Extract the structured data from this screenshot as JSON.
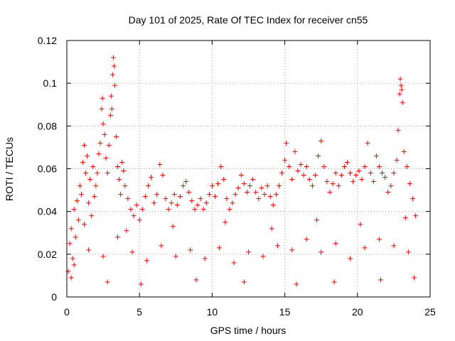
{
  "chart_data": {
    "type": "scatter",
    "title": "Day 101 of 2025, Rate Of TEC Index for receiver cn55",
    "xlabel": "GPS time / hours",
    "ylabel": "ROTI / TECUs",
    "xlim": [
      0,
      25
    ],
    "ylim": [
      0,
      0.12
    ],
    "xticks": [
      0,
      5,
      10,
      15,
      20,
      25
    ],
    "xtick_labels": [
      "0",
      "5",
      "10",
      "15",
      "20",
      "25"
    ],
    "yticks": [
      0,
      0.02,
      0.04,
      0.06,
      0.08,
      0.1,
      0.12
    ],
    "ytick_labels": [
      "0",
      "0.02",
      "0.04",
      "0.06",
      "0.08",
      "0.1",
      "0.12"
    ],
    "grid": true,
    "marker": "plus",
    "color": "#ff0000",
    "series": [
      {
        "points": [
          [
            0.1,
            0.012
          ],
          [
            0.2,
            0.025
          ],
          [
            0.3,
            0.032
          ],
          [
            0.4,
            0.018
          ],
          [
            0.5,
            0.041
          ],
          [
            0.6,
            0.028
          ],
          [
            0.7,
            0.045
          ],
          [
            0.8,
            0.036
          ],
          [
            0.9,
            0.052
          ],
          [
            1.0,
            0.048
          ],
          [
            1.1,
            0.063
          ],
          [
            1.2,
            0.071
          ],
          [
            1.3,
            0.058
          ],
          [
            1.4,
            0.066
          ],
          [
            1.5,
            0.044
          ],
          [
            1.6,
            0.055
          ],
          [
            1.7,
            0.038
          ],
          [
            1.8,
            0.061
          ],
          [
            1.9,
            0.047
          ],
          [
            2.0,
            0.052
          ],
          [
            2.1,
            0.058
          ],
          [
            2.2,
            0.067
          ],
          [
            2.3,
            0.072
          ],
          [
            2.4,
            0.088
          ],
          [
            2.45,
            0.093
          ],
          [
            2.5,
            0.081
          ],
          [
            2.6,
            0.076
          ],
          [
            2.7,
            0.065
          ],
          [
            2.8,
            0.058
          ],
          [
            2.9,
            0.071
          ],
          [
            3.0,
            0.085
          ],
          [
            3.05,
            0.094
          ],
          [
            3.1,
            0.088
          ],
          [
            3.15,
            0.104
          ],
          [
            3.2,
            0.112
          ],
          [
            3.25,
            0.108
          ],
          [
            3.3,
            0.099
          ],
          [
            3.4,
            0.075
          ],
          [
            3.5,
            0.061
          ],
          [
            3.6,
            0.055
          ],
          [
            3.7,
            0.048
          ],
          [
            3.8,
            0.063
          ],
          [
            3.9,
            0.059
          ],
          [
            4.0,
            0.052
          ],
          [
            4.2,
            0.046
          ],
          [
            4.4,
            0.041
          ],
          [
            4.6,
            0.038
          ],
          [
            4.8,
            0.043
          ],
          [
            5.0,
            0.036
          ],
          [
            5.2,
            0.041
          ],
          [
            5.4,
            0.047
          ],
          [
            5.6,
            0.052
          ],
          [
            5.8,
            0.056
          ],
          [
            6.0,
            0.044
          ],
          [
            6.2,
            0.048
          ],
          [
            6.4,
            0.062
          ],
          [
            6.6,
            0.057
          ],
          [
            6.8,
            0.046
          ],
          [
            7.0,
            0.041
          ],
          [
            7.2,
            0.044
          ],
          [
            7.4,
            0.048
          ],
          [
            7.6,
            0.043
          ],
          [
            7.8,
            0.047
          ],
          [
            8.0,
            0.052
          ],
          [
            8.2,
            0.054
          ],
          [
            8.4,
            0.049
          ],
          [
            8.6,
            0.045
          ],
          [
            8.8,
            0.041
          ],
          [
            9.0,
            0.043
          ],
          [
            9.2,
            0.046
          ],
          [
            9.4,
            0.041
          ],
          [
            9.6,
            0.044
          ],
          [
            9.8,
            0.048
          ],
          [
            10.0,
            0.052
          ],
          [
            10.2,
            0.047
          ],
          [
            10.4,
            0.053
          ],
          [
            10.6,
            0.061
          ],
          [
            10.8,
            0.055
          ],
          [
            11.0,
            0.046
          ],
          [
            11.2,
            0.041
          ],
          [
            11.4,
            0.044
          ],
          [
            11.6,
            0.048
          ],
          [
            11.8,
            0.051
          ],
          [
            12.0,
            0.057
          ],
          [
            12.2,
            0.053
          ],
          [
            12.4,
            0.049
          ],
          [
            12.6,
            0.052
          ],
          [
            12.8,
            0.055
          ],
          [
            13.0,
            0.049
          ],
          [
            13.2,
            0.046
          ],
          [
            13.4,
            0.051
          ],
          [
            13.6,
            0.048
          ],
          [
            13.8,
            0.052
          ],
          [
            14.0,
            0.047
          ],
          [
            14.2,
            0.043
          ],
          [
            14.4,
            0.048
          ],
          [
            14.6,
            0.052
          ],
          [
            14.8,
            0.058
          ],
          [
            15.0,
            0.064
          ],
          [
            15.1,
            0.072
          ],
          [
            15.3,
            0.061
          ],
          [
            15.5,
            0.055
          ],
          [
            15.7,
            0.068
          ],
          [
            15.9,
            0.059
          ],
          [
            16.1,
            0.062
          ],
          [
            16.3,
            0.057
          ],
          [
            16.5,
            0.061
          ],
          [
            16.7,
            0.055
          ],
          [
            16.9,
            0.052
          ],
          [
            17.1,
            0.057
          ],
          [
            17.3,
            0.066
          ],
          [
            17.5,
            0.073
          ],
          [
            17.7,
            0.061
          ],
          [
            17.9,
            0.054
          ],
          [
            18.1,
            0.049
          ],
          [
            18.3,
            0.053
          ],
          [
            18.5,
            0.058
          ],
          [
            18.7,
            0.052
          ],
          [
            18.9,
            0.057
          ],
          [
            19.1,
            0.061
          ],
          [
            19.3,
            0.063
          ],
          [
            19.5,
            0.058
          ],
          [
            19.7,
            0.054
          ],
          [
            19.9,
            0.057
          ],
          [
            20.1,
            0.059
          ],
          [
            20.3,
            0.055
          ],
          [
            20.5,
            0.061
          ],
          [
            20.7,
            0.072
          ],
          [
            20.9,
            0.058
          ],
          [
            21.1,
            0.054
          ],
          [
            21.3,
            0.066
          ],
          [
            21.5,
            0.061
          ],
          [
            21.7,
            0.058
          ],
          [
            21.9,
            0.056
          ],
          [
            22.1,
            0.049
          ],
          [
            22.3,
            0.052
          ],
          [
            22.5,
            0.058
          ],
          [
            22.7,
            0.064
          ],
          [
            22.8,
            0.078
          ],
          [
            22.9,
            0.095
          ],
          [
            22.95,
            0.102
          ],
          [
            23.0,
            0.099
          ],
          [
            23.05,
            0.097
          ],
          [
            23.1,
            0.091
          ],
          [
            23.2,
            0.068
          ],
          [
            23.4,
            0.061
          ],
          [
            23.6,
            0.053
          ],
          [
            23.8,
            0.046
          ],
          [
            24.0,
            0.038
          ],
          [
            0.5,
            0.015
          ],
          [
            1.5,
            0.022
          ],
          [
            2.5,
            0.019
          ],
          [
            3.5,
            0.028
          ],
          [
            4.5,
            0.021
          ],
          [
            5.5,
            0.017
          ],
          [
            6.5,
            0.024
          ],
          [
            7.5,
            0.019
          ],
          [
            8.5,
            0.022
          ],
          [
            9.5,
            0.018
          ],
          [
            10.5,
            0.023
          ],
          [
            11.5,
            0.016
          ],
          [
            12.5,
            0.021
          ],
          [
            13.5,
            0.019
          ],
          [
            14.5,
            0.024
          ],
          [
            15.5,
            0.022
          ],
          [
            16.5,
            0.027
          ],
          [
            17.5,
            0.021
          ],
          [
            18.5,
            0.025
          ],
          [
            19.5,
            0.018
          ],
          [
            20.5,
            0.023
          ],
          [
            21.5,
            0.027
          ],
          [
            22.5,
            0.024
          ],
          [
            23.5,
            0.021
          ],
          [
            0.3,
            0.009
          ],
          [
            2.8,
            0.007
          ],
          [
            5.1,
            0.006
          ],
          [
            8.9,
            0.008
          ],
          [
            12.2,
            0.007
          ],
          [
            15.8,
            0.006
          ],
          [
            18.4,
            0.007
          ],
          [
            21.6,
            0.008
          ],
          [
            23.9,
            0.009
          ],
          [
            1.2,
            0.034
          ],
          [
            4.1,
            0.031
          ],
          [
            7.3,
            0.033
          ],
          [
            10.9,
            0.035
          ],
          [
            14.1,
            0.032
          ],
          [
            17.2,
            0.036
          ],
          [
            20.2,
            0.034
          ],
          [
            23.3,
            0.037
          ]
        ]
      }
    ]
  }
}
